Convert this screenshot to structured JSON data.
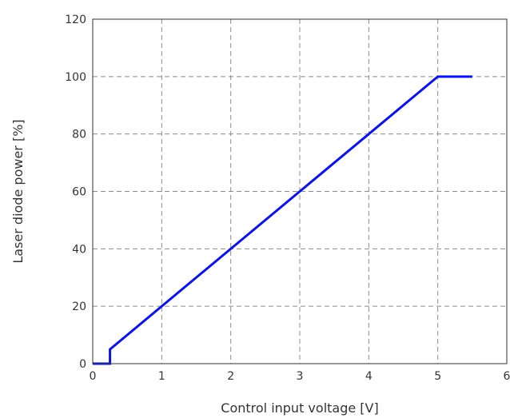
{
  "chart_data": {
    "type": "line",
    "title": "",
    "xlabel": "Control input voltage [V]",
    "ylabel": "Laser diode power [%]",
    "xlim": [
      0,
      6
    ],
    "ylim": [
      0,
      120
    ],
    "xticks": [
      0,
      1,
      2,
      3,
      4,
      5,
      6
    ],
    "yticks": [
      0,
      20,
      40,
      60,
      80,
      100,
      120
    ],
    "grid": true,
    "legend": "none",
    "series": [
      {
        "color": "#0a14e6",
        "x": [
          0,
          0.25,
          0.25,
          5.0,
          5.5
        ],
        "y": [
          0,
          0,
          5,
          100,
          100
        ]
      }
    ]
  }
}
